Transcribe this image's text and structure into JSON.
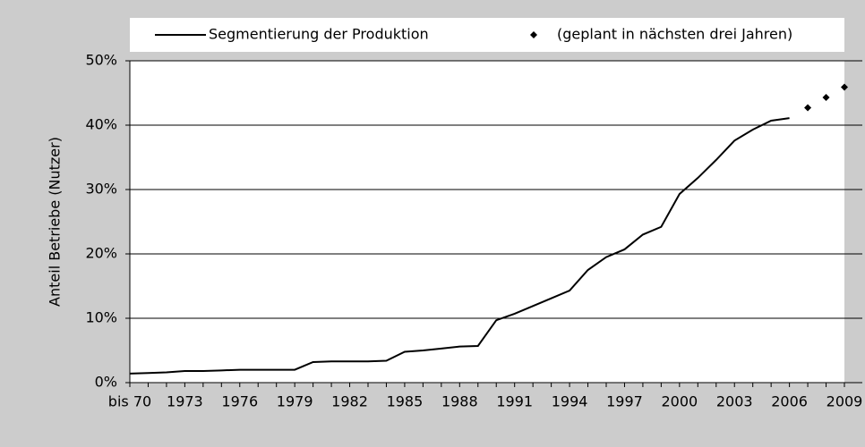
{
  "chart_data": {
    "type": "line",
    "ylabel": "Anteil Betriebe (Nutzer)",
    "categories": [
      "bis 70",
      null,
      null,
      "1973",
      null,
      null,
      "1976",
      null,
      null,
      "1979",
      null,
      null,
      "1982",
      null,
      null,
      "1985",
      null,
      null,
      "1988",
      null,
      null,
      "1991",
      null,
      null,
      "1994",
      null,
      null,
      "1997",
      null,
      null,
      "2000",
      null,
      null,
      "2003",
      null,
      null,
      "2006",
      null,
      null,
      "2009"
    ],
    "series": [
      {
        "name": "Segmentierung der Produktion",
        "color": "#000000",
        "style": "line",
        "values": [
          1.4,
          1.5,
          1.6,
          1.8,
          1.8,
          1.9,
          2.0,
          2.0,
          2.0,
          2.0,
          3.2,
          3.3,
          3.3,
          3.3,
          3.4,
          4.8,
          5.0,
          5.3,
          5.6,
          5.7,
          9.7,
          10.7,
          11.9,
          13.1,
          14.3,
          17.5,
          19.5,
          20.7,
          23.0,
          24.2,
          29.3,
          31.8,
          34.6,
          37.6,
          39.3,
          40.7,
          41.1,
          null,
          null,
          null
        ]
      },
      {
        "name": "(geplant in nächsten drei Jahren)",
        "color": "#000000",
        "style": "marker",
        "values": [
          null,
          null,
          null,
          null,
          null,
          null,
          null,
          null,
          null,
          null,
          null,
          null,
          null,
          null,
          null,
          null,
          null,
          null,
          null,
          null,
          null,
          null,
          null,
          null,
          null,
          null,
          null,
          null,
          null,
          null,
          null,
          null,
          null,
          null,
          null,
          null,
          null,
          42.7,
          44.3,
          45.9
        ]
      }
    ],
    "ylim": [
      0,
      50
    ],
    "yticks": [
      {
        "value": 0,
        "label": "0%"
      },
      {
        "value": 10,
        "label": "10%"
      },
      {
        "value": 20,
        "label": "20%"
      },
      {
        "value": 30,
        "label": "30%"
      },
      {
        "value": 40,
        "label": "40%"
      },
      {
        "value": 50,
        "label": "50%"
      }
    ],
    "grid": true,
    "legend": "top"
  }
}
